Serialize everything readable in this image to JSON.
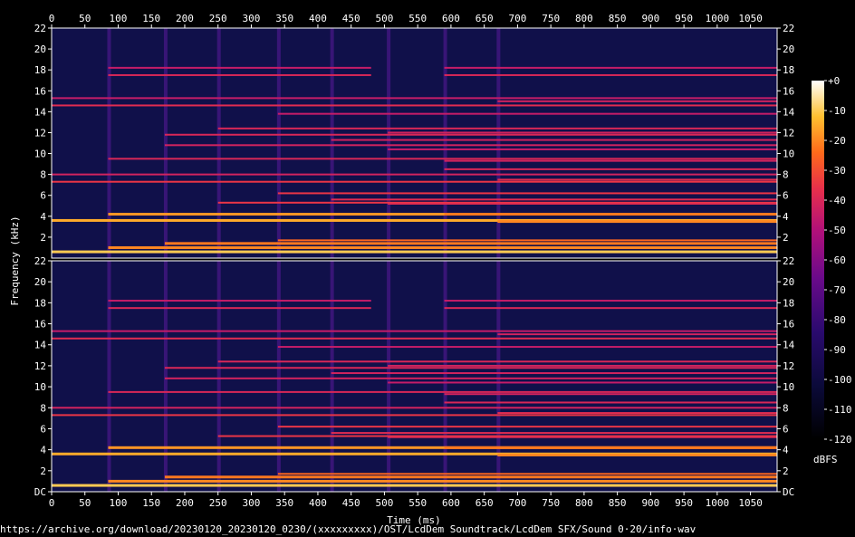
{
  "chart_data": {
    "type": "heatmap",
    "title": "",
    "xlabel": "Time (ms)",
    "ylabel": "Frequency (kHz)",
    "xlim": [
      0,
      1090
    ],
    "ylim": [
      0,
      22
    ],
    "x_ticks": [
      "0",
      "50",
      "100",
      "150",
      "200",
      "250",
      "300",
      "350",
      "400",
      "450",
      "500",
      "550",
      "600",
      "650",
      "700",
      "750",
      "800",
      "850",
      "900",
      "950",
      "1000",
      "1050"
    ],
    "y_ticks": [
      "DC",
      "2",
      "4",
      "6",
      "8",
      "10",
      "12",
      "14",
      "16",
      "18",
      "20",
      "22"
    ],
    "y_ticks_top_panel": [
      "2",
      "4",
      "6",
      "8",
      "10",
      "12",
      "14",
      "16",
      "18",
      "20",
      "22"
    ],
    "channels": 2,
    "colorbar": {
      "label": "dBFS",
      "ticks": [
        "+0",
        "-10",
        "-20",
        "-30",
        "-40",
        "-50",
        "-60",
        "-70",
        "-80",
        "-90",
        "-100",
        "-110",
        "-120"
      ],
      "range": [
        -120,
        0
      ]
    },
    "tones": [
      {
        "start": 0,
        "end": 1090,
        "freq": 0.6,
        "level": -10
      },
      {
        "start": 0,
        "end": 1090,
        "freq": 3.6,
        "level": -15
      },
      {
        "start": 0,
        "end": 1090,
        "freq": 7.3,
        "level": -35
      },
      {
        "start": 0,
        "end": 1090,
        "freq": 14.6,
        "level": -38
      },
      {
        "start": 0,
        "end": 1090,
        "freq": 15.3,
        "level": -45
      },
      {
        "start": 0,
        "end": 1090,
        "freq": 8.0,
        "level": -42
      },
      {
        "start": 85,
        "end": 1090,
        "freq": 4.2,
        "level": -18
      },
      {
        "start": 85,
        "end": 1090,
        "freq": 9.5,
        "level": -40
      },
      {
        "start": 85,
        "end": 480,
        "freq": 17.5,
        "level": -40
      },
      {
        "start": 85,
        "end": 480,
        "freq": 18.2,
        "level": -45
      },
      {
        "start": 85,
        "end": 1090,
        "freq": 1.0,
        "level": -20
      },
      {
        "start": 170,
        "end": 1090,
        "freq": 10.8,
        "level": -42
      },
      {
        "start": 170,
        "end": 1090,
        "freq": 11.8,
        "level": -40
      },
      {
        "start": 170,
        "end": 1090,
        "freq": 1.4,
        "level": -22
      },
      {
        "start": 250,
        "end": 1090,
        "freq": 5.3,
        "level": -35
      },
      {
        "start": 250,
        "end": 1090,
        "freq": 12.4,
        "level": -40
      },
      {
        "start": 340,
        "end": 1090,
        "freq": 6.2,
        "level": -35
      },
      {
        "start": 340,
        "end": 1090,
        "freq": 13.8,
        "level": -45
      },
      {
        "start": 340,
        "end": 1090,
        "freq": 1.7,
        "level": -25
      },
      {
        "start": 420,
        "end": 1090,
        "freq": 11.3,
        "level": -42
      },
      {
        "start": 420,
        "end": 1090,
        "freq": 5.6,
        "level": -38
      },
      {
        "start": 505,
        "end": 1090,
        "freq": 12.0,
        "level": -42
      },
      {
        "start": 505,
        "end": 1090,
        "freq": 10.4,
        "level": -45
      },
      {
        "start": 505,
        "end": 1090,
        "freq": 5.2,
        "level": -38
      },
      {
        "start": 590,
        "end": 1090,
        "freq": 17.5,
        "level": -40
      },
      {
        "start": 590,
        "end": 1090,
        "freq": 18.2,
        "level": -45
      },
      {
        "start": 590,
        "end": 1090,
        "freq": 9.3,
        "level": -42
      },
      {
        "start": 590,
        "end": 1090,
        "freq": 4.2,
        "level": -22
      },
      {
        "start": 590,
        "end": 1090,
        "freq": 8.5,
        "level": -40
      },
      {
        "start": 670,
        "end": 1090,
        "freq": 15.0,
        "level": -42
      },
      {
        "start": 670,
        "end": 1090,
        "freq": 7.5,
        "level": -38
      },
      {
        "start": 670,
        "end": 1090,
        "freq": 3.5,
        "level": -20
      }
    ],
    "onsets_ms": [
      85,
      170,
      250,
      340,
      420,
      505,
      590,
      670
    ]
  },
  "footer": {
    "url": "https://archive.org/download/20230120_20230120_0230/(xxxxxxxxx)/OST/LcdDem Soundtrack/LcdDem SFX/Sound 0·20/info·wav"
  }
}
